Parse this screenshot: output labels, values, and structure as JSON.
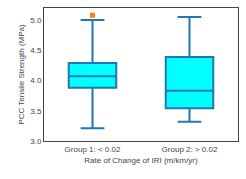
{
  "chart_data": {
    "type": "box",
    "xlabel": "Rate of Change of IRI (m/km/yr)",
    "ylabel": "PCC Tensile Strength (MPa)",
    "categories": [
      "Group 1: < 0.02",
      "Group 2: > 0.02"
    ],
    "boxes": [
      {
        "median": 4.07,
        "q1": 3.88,
        "q3": 4.29,
        "whisker_low": 3.21,
        "whisker_high": 5.0,
        "outliers": [
          5.08
        ]
      },
      {
        "median": 3.83,
        "q1": 3.54,
        "q3": 4.39,
        "whisker_low": 3.32,
        "whisker_high": 5.05,
        "outliers": []
      }
    ],
    "color": "#00FFFF",
    "marker": "square",
    "ylim": [
      3.0,
      5.2
    ],
    "yticks": [
      {
        "value": 3.0,
        "label": "3.0"
      },
      3.5,
      {
        "value": 4.0,
        "label": "4.0"
      },
      4.5,
      {
        "value": 5.0,
        "label": "5.0"
      }
    ],
    "grid": false
  }
}
